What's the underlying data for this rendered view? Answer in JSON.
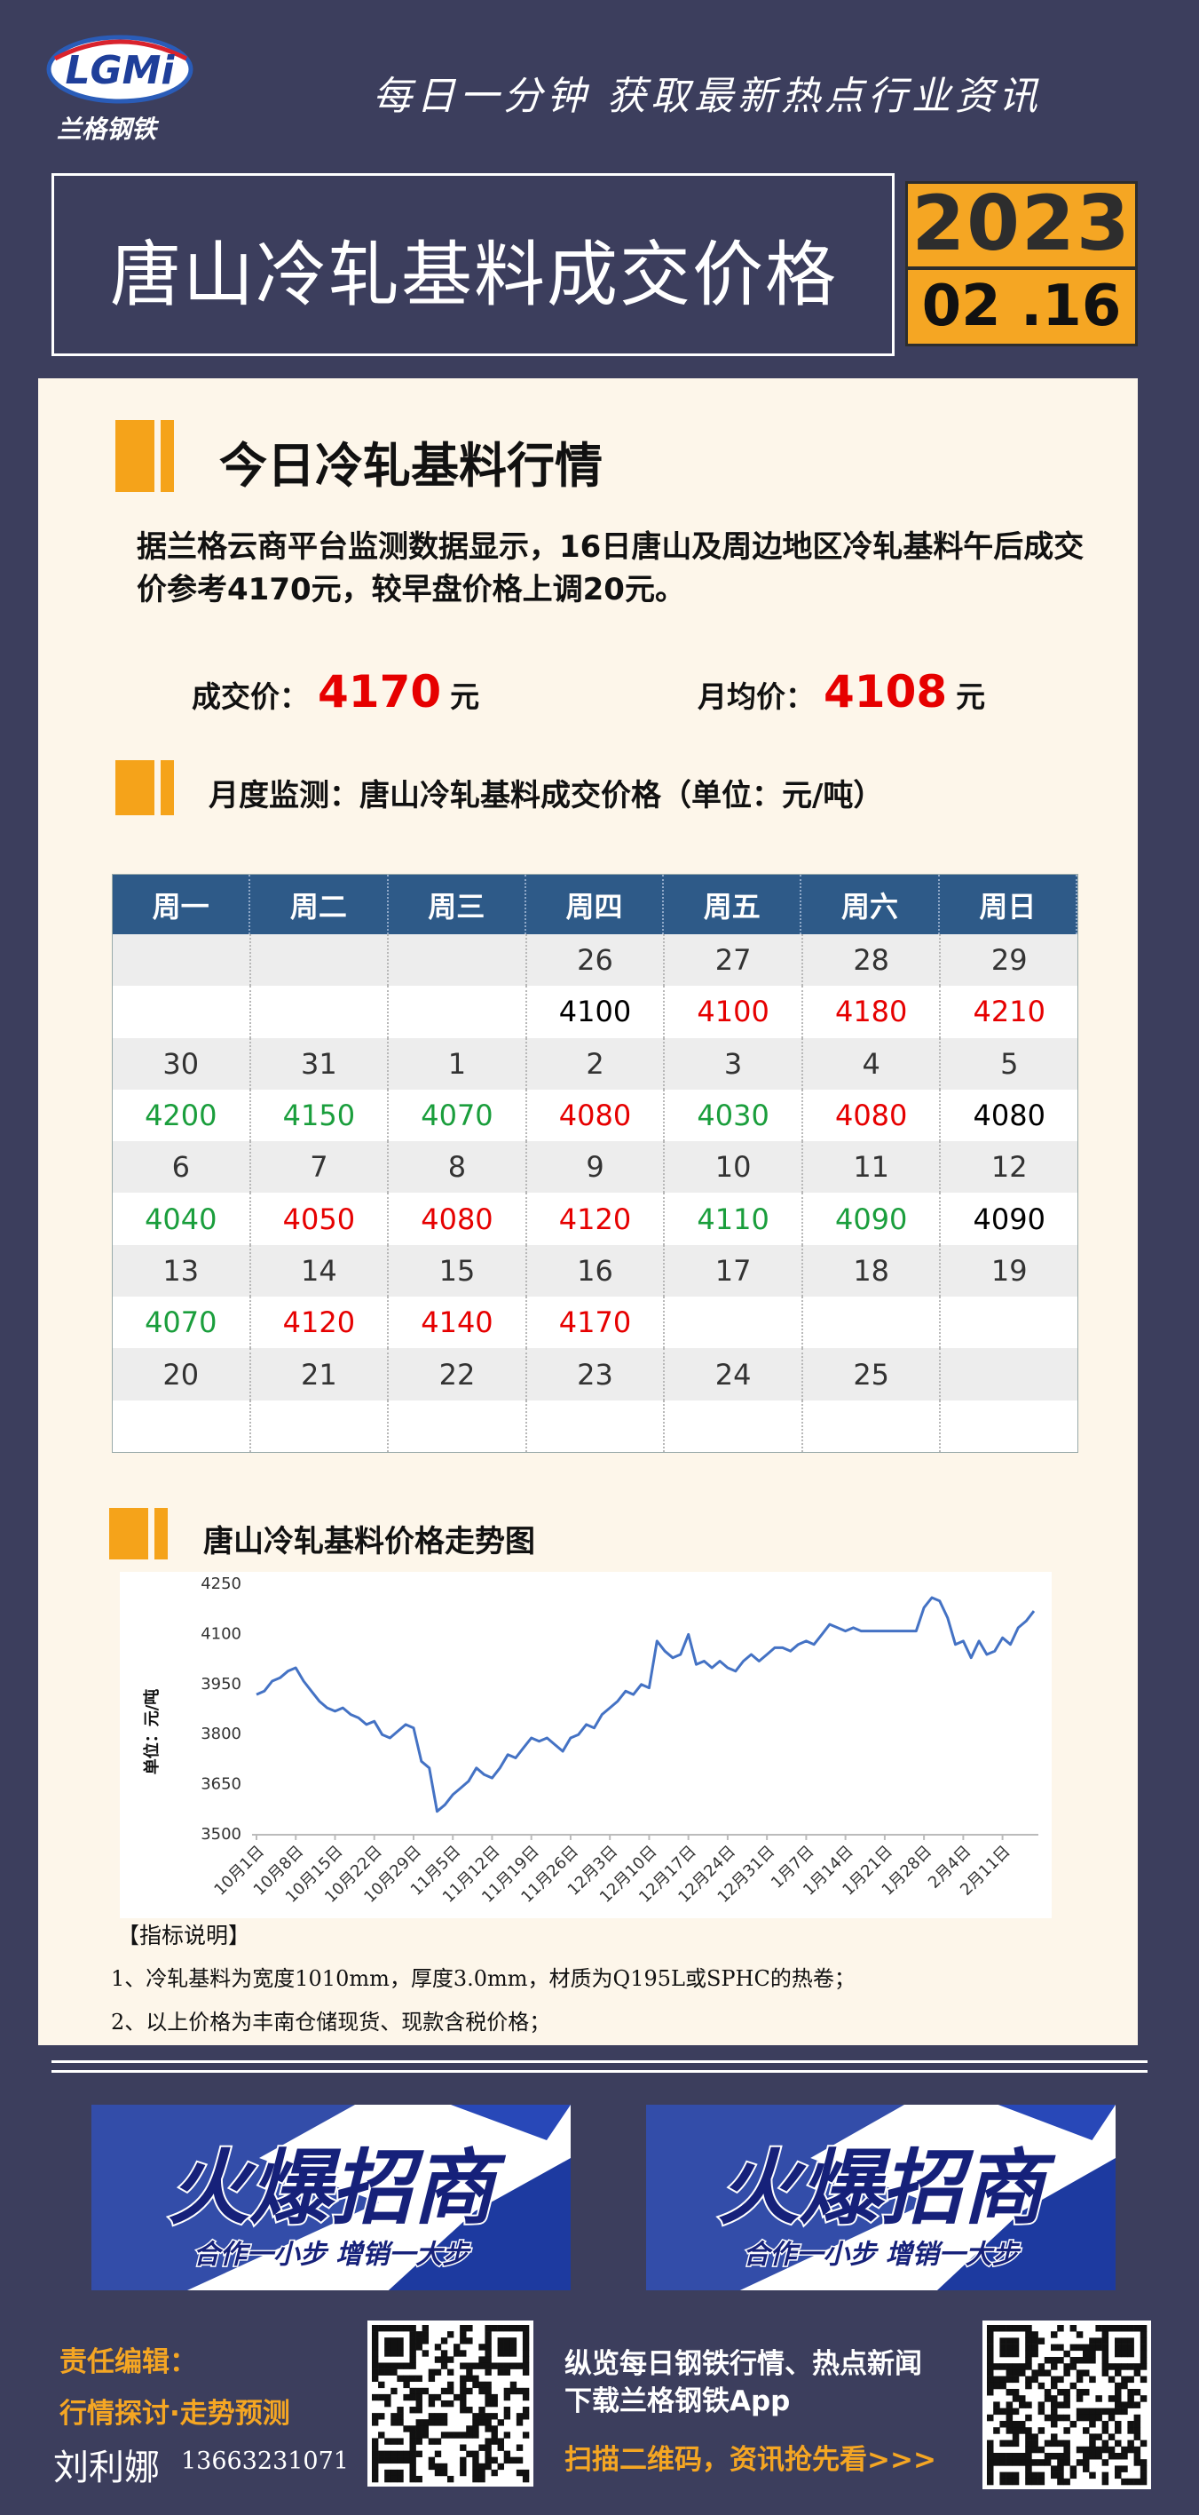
{
  "header": {
    "logo": "LGMi",
    "logo_sub": "兰格钢铁",
    "slogan": "每日一分钟  获取最新热点行业资讯",
    "title": "唐山冷轧基料成交价格",
    "year": "2023",
    "date": "02 .16"
  },
  "summary": {
    "heading": "今日冷轧基料行情",
    "text": "据兰格云商平台监测数据显示，16日唐山及周边地区冷轧基料午后成交价参考4170元，较早盘价格上调20元。",
    "deal_label": "成交价：",
    "deal_value": "4170",
    "avg_label": "月均价：",
    "avg_value": "4108",
    "unit": "元"
  },
  "table": {
    "heading": "月度监测：唐山冷轧基料成交价格（单位：元/吨）",
    "header": [
      "周一",
      "周二",
      "周三",
      "周四",
      "周五",
      "周六",
      "周日"
    ],
    "rows": [
      [
        null,
        null,
        null,
        "26",
        "27",
        "28",
        "29"
      ],
      [
        null,
        null,
        null,
        "4100",
        "4100",
        "4180",
        "4210"
      ],
      [
        "30",
        "31",
        "1",
        "2",
        "3",
        "4",
        "5"
      ],
      [
        "4200",
        "4150",
        "4070",
        "4080",
        "4030",
        "4080",
        "4080"
      ],
      [
        "6",
        "7",
        "8",
        "9",
        "10",
        "11",
        "12"
      ],
      [
        "4040",
        "4050",
        "4080",
        "4120",
        "4110",
        "4090",
        "4090"
      ],
      [
        "13",
        "14",
        "15",
        "16",
        "17",
        "18",
        "19"
      ],
      [
        "4070",
        "4120",
        "4140",
        "4170",
        null,
        null,
        null
      ],
      [
        "20",
        "21",
        "22",
        "23",
        "24",
        "25",
        null
      ],
      [
        null,
        null,
        null,
        null,
        null,
        null,
        null
      ]
    ],
    "colors": [
      [
        null,
        null,
        null,
        null,
        null,
        null,
        null
      ],
      [
        null,
        null,
        null,
        "#000000",
        "#e60000",
        "#e60000",
        "#e60000"
      ],
      [
        null,
        null,
        null,
        null,
        null,
        null,
        null
      ],
      [
        "#1a9e3c",
        "#1a9e3c",
        "#1a9e3c",
        "#e60000",
        "#1a9e3c",
        "#e60000",
        "#000000"
      ],
      [
        null,
        null,
        null,
        null,
        null,
        null,
        null
      ],
      [
        "#1a9e3c",
        "#e60000",
        "#e60000",
        "#e60000",
        "#1a9e3c",
        "#1a9e3c",
        "#000000"
      ],
      [
        null,
        null,
        null,
        null,
        null,
        null,
        null
      ],
      [
        "#1a9e3c",
        "#e60000",
        "#e60000",
        "#e60000",
        null,
        null,
        null
      ],
      [
        null,
        null,
        null,
        null,
        null,
        null,
        null
      ],
      [
        null,
        null,
        null,
        null,
        null,
        null,
        null
      ]
    ]
  },
  "chart_data": {
    "type": "line",
    "title": "唐山冷轧基料价格走势图",
    "y_label": "单位：元/吨",
    "color": "#4472c4",
    "ylim": [
      3500,
      4250
    ],
    "yticks": [
      3500,
      3650,
      3800,
      3950,
      4100,
      4250
    ],
    "grid": false,
    "categories": [
      "10月1日",
      null,
      null,
      null,
      null,
      "10月8日",
      null,
      null,
      null,
      null,
      "10月15日",
      null,
      null,
      null,
      null,
      "10月22日",
      null,
      null,
      null,
      null,
      "10月29日",
      null,
      null,
      null,
      null,
      "11月5日",
      null,
      null,
      null,
      null,
      "11月12日",
      null,
      null,
      null,
      null,
      "11月19日",
      null,
      null,
      null,
      null,
      "11月26日",
      null,
      null,
      null,
      null,
      "12月3日",
      null,
      null,
      null,
      null,
      "12月10日",
      null,
      null,
      null,
      null,
      "12月17日",
      null,
      null,
      null,
      null,
      "12月24日",
      null,
      null,
      null,
      null,
      "12月31日",
      null,
      null,
      null,
      null,
      "1月7日",
      null,
      null,
      null,
      null,
      "1月14日",
      null,
      null,
      null,
      null,
      "1月21日",
      null,
      null,
      null,
      null,
      "1月28日",
      null,
      null,
      null,
      null,
      "2月4日",
      null,
      null,
      null,
      null,
      "2月11日",
      null,
      null,
      null,
      null
    ],
    "values": [
      3920,
      3930,
      3960,
      3970,
      3990,
      4000,
      3960,
      3930,
      3900,
      3880,
      3870,
      3880,
      3860,
      3850,
      3830,
      3840,
      3800,
      3790,
      3810,
      3830,
      3820,
      3720,
      3700,
      3570,
      3590,
      3620,
      3640,
      3660,
      3700,
      3680,
      3670,
      3700,
      3740,
      3730,
      3760,
      3790,
      3780,
      3790,
      3770,
      3750,
      3790,
      3800,
      3830,
      3820,
      3860,
      3880,
      3900,
      3930,
      3920,
      3950,
      3940,
      4080,
      4050,
      4030,
      4040,
      4100,
      4010,
      4020,
      4000,
      4020,
      4000,
      3990,
      4020,
      4040,
      4020,
      4040,
      4060,
      4060,
      4050,
      4070,
      4080,
      4070,
      4100,
      4130,
      4120,
      4110,
      4120,
      4110,
      4110,
      4110,
      4110,
      4110,
      4110,
      4110,
      4110,
      4180,
      4210,
      4200,
      4150,
      4070,
      4080,
      4030,
      4080,
      4040,
      4050,
      4090,
      4070,
      4120,
      4140,
      4170
    ]
  },
  "notes": {
    "heading": "【指标说明】",
    "items": [
      "1、冷轧基料为宽度1010mm，厚度3.0mm，材质为Q195L或SPHC的热卷；",
      "2、以上价格为丰南仓储现货、现款含税价格；"
    ]
  },
  "ads": [
    {
      "title": "火爆招商",
      "slogan": "合作一小步  增销一大步"
    },
    {
      "title": "火爆招商",
      "slogan": "合作一小步  增销一大步"
    }
  ],
  "footer": {
    "editor_label": "责任编辑：",
    "editor_topic": "行情探讨·走势预测",
    "editor_name": "刘利娜",
    "phone": "13663231071",
    "promo_1": "纵览每日钢铁行情、热点新闻",
    "promo_2": "下载兰格钢铁App",
    "promo_3": "扫描二维码，资讯抢先看>>>"
  }
}
